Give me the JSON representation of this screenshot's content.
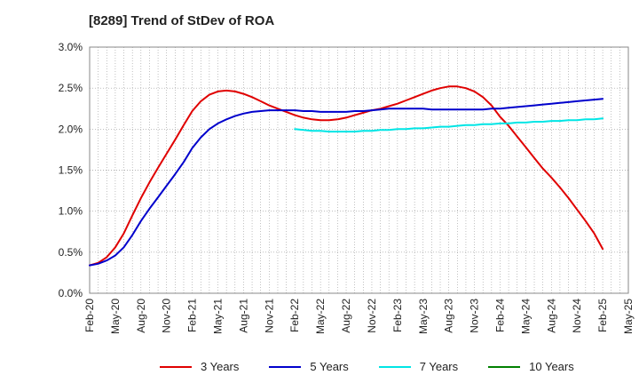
{
  "chart_data": {
    "type": "line",
    "title": "[8289]  Trend of StDev of ROA",
    "xlabel": "",
    "ylabel": "",
    "ylim": [
      0,
      3.0
    ],
    "y_ticks": [
      "0.0%",
      "0.5%",
      "1.0%",
      "1.5%",
      "2.0%",
      "2.5%",
      "3.0%"
    ],
    "x_ticks": [
      "Feb-20",
      "May-20",
      "Aug-20",
      "Nov-20",
      "Feb-21",
      "May-21",
      "Aug-21",
      "Nov-21",
      "Feb-22",
      "May-22",
      "Aug-22",
      "Nov-22",
      "Feb-23",
      "May-23",
      "Aug-23",
      "Nov-23",
      "Feb-24",
      "May-24",
      "Aug-24",
      "Nov-24",
      "Feb-25",
      "May-25"
    ],
    "grid": true,
    "legend_position": "bottom",
    "series": [
      {
        "name": "3 Years",
        "color": "#e00000",
        "x": [
          "Feb-20",
          "Mar-20",
          "Apr-20",
          "May-20",
          "Jun-20",
          "Jul-20",
          "Aug-20",
          "Sep-20",
          "Oct-20",
          "Nov-20",
          "Dec-20",
          "Jan-21",
          "Feb-21",
          "Mar-21",
          "Apr-21",
          "May-21",
          "Jun-21",
          "Jul-21",
          "Aug-21",
          "Sep-21",
          "Oct-21",
          "Nov-21",
          "Dec-21",
          "Jan-22",
          "Feb-22",
          "Mar-22",
          "Apr-22",
          "May-22",
          "Jun-22",
          "Jul-22",
          "Aug-22",
          "Sep-22",
          "Oct-22",
          "Nov-22",
          "Dec-22",
          "Jan-23",
          "Feb-23",
          "Mar-23",
          "Apr-23",
          "May-23",
          "Jun-23",
          "Jul-23",
          "Aug-23",
          "Sep-23",
          "Oct-23",
          "Nov-23",
          "Dec-23",
          "Jan-24",
          "Feb-24",
          "Mar-24",
          "Apr-24",
          "May-24",
          "Jun-24",
          "Jul-24",
          "Aug-24",
          "Sep-24",
          "Oct-24",
          "Nov-24",
          "Dec-24",
          "Jan-25",
          "Feb-25"
        ],
        "values": [
          0.34,
          0.37,
          0.44,
          0.56,
          0.73,
          0.95,
          1.16,
          1.35,
          1.53,
          1.7,
          1.87,
          2.05,
          2.22,
          2.34,
          2.42,
          2.46,
          2.47,
          2.46,
          2.43,
          2.39,
          2.34,
          2.29,
          2.25,
          2.21,
          2.17,
          2.14,
          2.12,
          2.11,
          2.11,
          2.12,
          2.14,
          2.17,
          2.2,
          2.23,
          2.25,
          2.28,
          2.31,
          2.35,
          2.39,
          2.43,
          2.47,
          2.5,
          2.52,
          2.52,
          2.5,
          2.46,
          2.39,
          2.29,
          2.15,
          2.04,
          1.91,
          1.78,
          1.65,
          1.52,
          1.41,
          1.29,
          1.16,
          1.02,
          0.88,
          0.73,
          0.54
        ]
      },
      {
        "name": "5 Years",
        "color": "#0000cc",
        "x": [
          "Feb-20",
          "Mar-20",
          "Apr-20",
          "May-20",
          "Jun-20",
          "Jul-20",
          "Aug-20",
          "Sep-20",
          "Oct-20",
          "Nov-20",
          "Dec-20",
          "Jan-21",
          "Feb-21",
          "Mar-21",
          "Apr-21",
          "May-21",
          "Jun-21",
          "Jul-21",
          "Aug-21",
          "Sep-21",
          "Oct-21",
          "Nov-21",
          "Dec-21",
          "Jan-22",
          "Feb-22",
          "Mar-22",
          "Apr-22",
          "May-22",
          "Jun-22",
          "Jul-22",
          "Aug-22",
          "Sep-22",
          "Oct-22",
          "Nov-22",
          "Dec-22",
          "Jan-23",
          "Feb-23",
          "Mar-23",
          "Apr-23",
          "May-23",
          "Jun-23",
          "Jul-23",
          "Aug-23",
          "Sep-23",
          "Oct-23",
          "Nov-23",
          "Dec-23",
          "Jan-24",
          "Feb-24",
          "Mar-24",
          "Apr-24",
          "May-24",
          "Jun-24",
          "Jul-24",
          "Aug-24",
          "Sep-24",
          "Oct-24",
          "Nov-24",
          "Dec-24",
          "Jan-25",
          "Feb-25"
        ],
        "values": [
          0.34,
          0.36,
          0.4,
          0.46,
          0.56,
          0.71,
          0.88,
          1.03,
          1.17,
          1.31,
          1.45,
          1.6,
          1.77,
          1.9,
          2.0,
          2.07,
          2.12,
          2.16,
          2.19,
          2.21,
          2.22,
          2.23,
          2.23,
          2.23,
          2.23,
          2.22,
          2.22,
          2.21,
          2.21,
          2.21,
          2.21,
          2.22,
          2.22,
          2.23,
          2.24,
          2.25,
          2.25,
          2.25,
          2.25,
          2.25,
          2.24,
          2.24,
          2.24,
          2.24,
          2.24,
          2.24,
          2.24,
          2.25,
          2.25,
          2.26,
          2.27,
          2.28,
          2.29,
          2.3,
          2.31,
          2.32,
          2.33,
          2.34,
          2.35,
          2.36,
          2.37
        ]
      },
      {
        "name": "7 Years",
        "color": "#00e5e5",
        "x": [
          "Feb-22",
          "Mar-22",
          "Apr-22",
          "May-22",
          "Jun-22",
          "Jul-22",
          "Aug-22",
          "Sep-22",
          "Oct-22",
          "Nov-22",
          "Dec-22",
          "Jan-23",
          "Feb-23",
          "Mar-23",
          "Apr-23",
          "May-23",
          "Jun-23",
          "Jul-23",
          "Aug-23",
          "Sep-23",
          "Oct-23",
          "Nov-23",
          "Dec-23",
          "Jan-24",
          "Feb-24",
          "Mar-24",
          "Apr-24",
          "May-24",
          "Jun-24",
          "Jul-24",
          "Aug-24",
          "Sep-24",
          "Oct-24",
          "Nov-24",
          "Dec-24",
          "Jan-25",
          "Feb-25"
        ],
        "values": [
          2.0,
          1.99,
          1.98,
          1.98,
          1.97,
          1.97,
          1.97,
          1.97,
          1.98,
          1.98,
          1.99,
          1.99,
          2.0,
          2.0,
          2.01,
          2.01,
          2.02,
          2.03,
          2.03,
          2.04,
          2.05,
          2.05,
          2.06,
          2.06,
          2.07,
          2.07,
          2.08,
          2.08,
          2.09,
          2.09,
          2.1,
          2.1,
          2.11,
          2.11,
          2.12,
          2.12,
          2.13
        ]
      },
      {
        "name": "10 Years",
        "color": "#008000",
        "x": [],
        "values": []
      }
    ]
  }
}
